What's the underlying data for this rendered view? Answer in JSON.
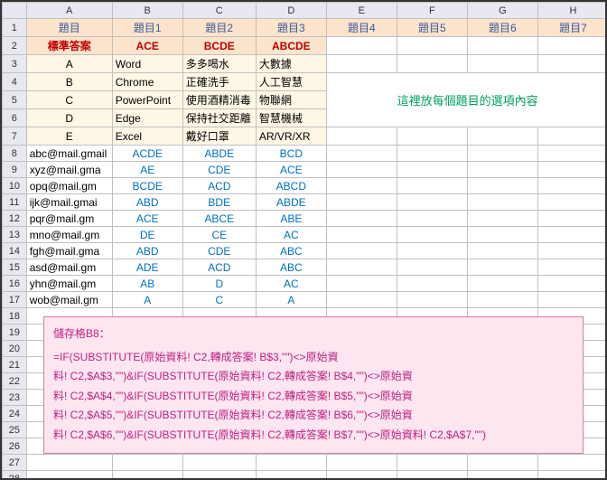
{
  "columns": [
    "A",
    "B",
    "C",
    "D",
    "E",
    "F",
    "G",
    "H"
  ],
  "headerRow": {
    "A": "題目",
    "B": "題目1",
    "C": "題目2",
    "D": "題目3",
    "E": "題目4",
    "F": "題目5",
    "G": "題目6",
    "H": "題目7"
  },
  "answerRow": {
    "A": "標準答案",
    "B": "ACE",
    "C": "BCDE",
    "D": "ABCDE"
  },
  "optionRows": [
    {
      "A": "A",
      "B": "Word",
      "C": "多多喝水",
      "D": "大數據"
    },
    {
      "A": "B",
      "B": "Chrome",
      "C": "正確洗手",
      "D": "人工智慧"
    },
    {
      "A": "C",
      "B": "PowerPoint",
      "C": "使用酒精消毒",
      "D": "物聯網"
    },
    {
      "A": "D",
      "B": "Edge",
      "C": "保持社交距離",
      "D": "智慧機械"
    },
    {
      "A": "E",
      "B": "Excel",
      "C": "戴好口罩",
      "D": "AR/VR/XR"
    }
  ],
  "note": "這裡放每個題目的選項內容",
  "dataRows": [
    {
      "n": 8,
      "A": "abc@mail.gmail",
      "B": "ACDE",
      "C": "ABDE",
      "D": "BCD"
    },
    {
      "n": 9,
      "A": "xyz@mail.gma",
      "B": "AE",
      "C": "CDE",
      "D": "ACE"
    },
    {
      "n": 10,
      "A": "opq@mail.gm",
      "B": "BCDE",
      "C": "ACD",
      "D": "ABCD"
    },
    {
      "n": 11,
      "A": "ijk@mail.gmai",
      "B": "ABD",
      "C": "BDE",
      "D": "ABDE"
    },
    {
      "n": 12,
      "A": "pqr@mail.gm",
      "B": "ACE",
      "C": "ABCE",
      "D": "ABE"
    },
    {
      "n": 13,
      "A": "mno@mail.gm",
      "B": "DE",
      "C": "CE",
      "D": "AC"
    },
    {
      "n": 14,
      "A": "fgh@mail.gma",
      "B": "ABD",
      "C": "CDE",
      "D": "ABC"
    },
    {
      "n": 15,
      "A": "asd@mail.gm",
      "B": "ADE",
      "C": "ACD",
      "D": "ABC"
    },
    {
      "n": 16,
      "A": "yhn@mail.gm",
      "B": "AB",
      "C": "D",
      "D": "AC"
    },
    {
      "n": 17,
      "A": "wob@mail.gm",
      "B": "A",
      "C": "C",
      "D": "A"
    }
  ],
  "emptyRows": [
    18,
    19,
    20,
    21,
    22,
    23,
    24,
    25,
    26,
    27,
    28
  ],
  "formula": {
    "title": "儲存格B8：",
    "lines": [
      "=IF(SUBSTITUTE(原始資料! C2,轉成答案! B$3,\"\")<>原始資",
      "料! C2,$A$3,\"\")&IF(SUBSTITUTE(原始資料! C2,轉成答案! B$4,\"\")<>原始資",
      "料! C2,$A$4,\"\")&IF(SUBSTITUTE(原始資料! C2,轉成答案! B$5,\"\")<>原始資",
      "料! C2,$A$5,\"\")&IF(SUBSTITUTE(原始資料! C2,轉成答案! B$6,\"\")<>原始資",
      "料! C2,$A$6,\"\")&IF(SUBSTITUTE(原始資料! C2,轉成答案! B$7,\"\")<>原始資料! C2,$A$7,\"\")"
    ]
  },
  "colors": {
    "headerBlue": "#3b5998",
    "red": "#c00000",
    "blue": "#0070c0",
    "green": "#00a060",
    "pink": "#c02080"
  }
}
